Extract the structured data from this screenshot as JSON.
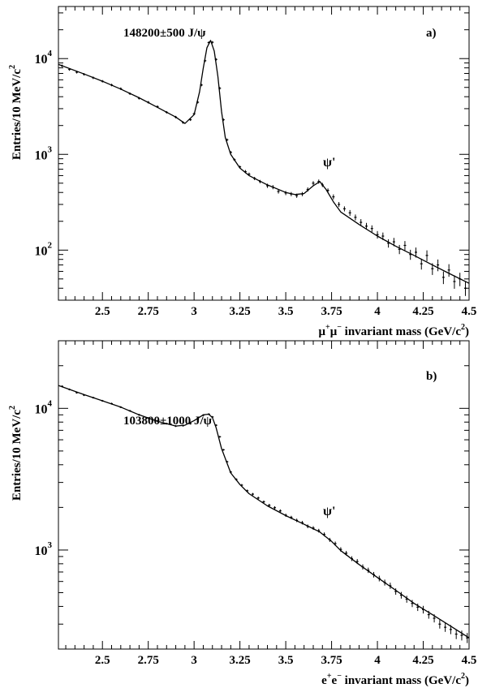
{
  "chart_data": [
    {
      "type": "scatter",
      "panel_label": "a)",
      "annotation": "148200±500 J/ψ",
      "peak_label": "ψ'",
      "xlabel": {
        "pre": "μ",
        "sup1": "+",
        "mid": "μ",
        "sup2": "−",
        "post": " invariant mass (GeV/c",
        "sup3": "2",
        "end": ")"
      },
      "ylabel": {
        "main": "Entries/10 MeV/c",
        "sup": "2"
      },
      "xlim": [
        2.26,
        4.5
      ],
      "ylim": [
        30,
        35000
      ],
      "yscale": "log",
      "grid": false,
      "xticks": [
        2.5,
        2.75,
        3.0,
        3.25,
        3.5,
        3.75,
        4.0,
        4.25,
        4.5
      ],
      "xtick_labels": [
        "2.5",
        "2.75",
        "3",
        "3.25",
        "3.5",
        "3.75",
        "4",
        "4.25",
        "4.5"
      ],
      "yticks": [
        {
          "base": "10",
          "exp": "2",
          "value": 100
        },
        {
          "base": "10",
          "exp": "3",
          "value": 1000
        },
        {
          "base": "10",
          "exp": "4",
          "value": 10000
        }
      ],
      "fit": {
        "x": [
          2.26,
          2.4,
          2.5,
          2.6,
          2.7,
          2.8,
          2.9,
          2.95,
          3.0,
          3.03,
          3.05,
          3.07,
          3.09,
          3.11,
          3.13,
          3.15,
          3.17,
          3.2,
          3.25,
          3.3,
          3.4,
          3.5,
          3.55,
          3.6,
          3.65,
          3.686,
          3.72,
          3.76,
          3.8,
          3.9,
          4.0,
          4.1,
          4.2,
          4.3,
          4.4,
          4.5
        ],
        "y": [
          8700,
          6900,
          5800,
          4800,
          3900,
          3100,
          2450,
          2100,
          2600,
          4500,
          8000,
          13000,
          15500,
          12000,
          6500,
          2800,
          1500,
          1000,
          720,
          600,
          480,
          400,
          380,
          390,
          470,
          520,
          430,
          320,
          250,
          185,
          140,
          110,
          88,
          70,
          56,
          45
        ]
      },
      "points": {
        "x": [
          2.28,
          2.32,
          2.36,
          2.4,
          2.45,
          2.5,
          2.55,
          2.6,
          2.65,
          2.7,
          2.75,
          2.8,
          2.85,
          2.9,
          2.94,
          2.98,
          3.0,
          3.02,
          3.04,
          3.06,
          3.08,
          3.1,
          3.12,
          3.14,
          3.16,
          3.18,
          3.2,
          3.22,
          3.25,
          3.28,
          3.3,
          3.33,
          3.36,
          3.4,
          3.43,
          3.46,
          3.5,
          3.53,
          3.56,
          3.59,
          3.62,
          3.65,
          3.68,
          3.7,
          3.73,
          3.76,
          3.79,
          3.82,
          3.85,
          3.88,
          3.91,
          3.94,
          3.97,
          4.0,
          4.03,
          4.06,
          4.09,
          4.12,
          4.15,
          4.18,
          4.21,
          4.24,
          4.27,
          4.3,
          4.33,
          4.36,
          4.39,
          4.42,
          4.45,
          4.48
        ],
        "y": [
          8400,
          7700,
          7200,
          6850,
          6300,
          5800,
          5300,
          4850,
          4300,
          3850,
          3500,
          3150,
          2750,
          2450,
          2150,
          2300,
          2650,
          3500,
          5300,
          9500,
          14700,
          14800,
          9800,
          4900,
          2300,
          1420,
          1050,
          880,
          740,
          660,
          620,
          560,
          520,
          470,
          455,
          410,
          395,
          385,
          370,
          385,
          430,
          500,
          520,
          480,
          420,
          360,
          300,
          270,
          245,
          220,
          195,
          178,
          168,
          145,
          140,
          118,
          122,
          102,
          112,
          90,
          95,
          72,
          88,
          64,
          70,
          52,
          62,
          47,
          50,
          40
        ],
        "err": [
          0.03,
          0.03,
          0.03,
          0.03,
          0.03,
          0.03,
          0.03,
          0.03,
          0.03,
          0.03,
          0.03,
          0.03,
          0.03,
          0.03,
          0.03,
          0.03,
          0.03,
          0.03,
          0.03,
          0.03,
          0.03,
          0.03,
          0.03,
          0.03,
          0.03,
          0.03,
          0.03,
          0.03,
          0.03,
          0.04,
          0.04,
          0.04,
          0.04,
          0.05,
          0.05,
          0.05,
          0.05,
          0.05,
          0.05,
          0.05,
          0.05,
          0.05,
          0.05,
          0.05,
          0.05,
          0.06,
          0.06,
          0.06,
          0.07,
          0.07,
          0.08,
          0.08,
          0.08,
          0.09,
          0.09,
          0.1,
          0.1,
          0.11,
          0.11,
          0.12,
          0.12,
          0.13,
          0.13,
          0.14,
          0.14,
          0.15,
          0.15,
          0.16,
          0.16,
          0.17
        ]
      }
    },
    {
      "type": "scatter",
      "panel_label": "b)",
      "annotation": "103800±1000 J/ψ",
      "peak_label": "ψ'",
      "xlabel": {
        "pre": "e",
        "sup1": "+",
        "mid": "e",
        "sup2": "−",
        "post": " invariant mass (GeV/c",
        "sup3": "2",
        "end": ")"
      },
      "ylabel": {
        "main": "Entries/10 MeV/c",
        "sup": "2"
      },
      "xlim": [
        2.26,
        4.5
      ],
      "ylim": [
        200,
        30000
      ],
      "yscale": "log",
      "grid": false,
      "xticks": [
        2.5,
        2.75,
        3.0,
        3.25,
        3.5,
        3.75,
        4.0,
        4.25,
        4.5
      ],
      "xtick_labels": [
        "2.5",
        "2.75",
        "3",
        "3.25",
        "3.5",
        "3.75",
        "4",
        "4.25",
        "4.5"
      ],
      "yticks": [
        {
          "base": "10",
          "exp": "3",
          "value": 1000
        },
        {
          "base": "10",
          "exp": "4",
          "value": 10000
        }
      ],
      "fit": {
        "x": [
          2.26,
          2.4,
          2.5,
          2.6,
          2.7,
          2.8,
          2.9,
          2.95,
          3.0,
          3.05,
          3.08,
          3.1,
          3.12,
          3.15,
          3.2,
          3.25,
          3.3,
          3.4,
          3.5,
          3.6,
          3.686,
          3.75,
          3.8,
          3.9,
          4.0,
          4.1,
          4.2,
          4.3,
          4.4,
          4.5
        ],
        "y": [
          14500,
          12500,
          11300,
          10200,
          9000,
          8100,
          7500,
          7600,
          8200,
          9000,
          9100,
          8600,
          7300,
          5200,
          3500,
          2900,
          2500,
          2050,
          1750,
          1520,
          1340,
          1150,
          990,
          790,
          640,
          520,
          420,
          350,
          290,
          240
        ]
      },
      "points": {
        "x": [
          2.28,
          2.32,
          2.36,
          2.4,
          2.45,
          2.5,
          2.55,
          2.6,
          2.65,
          2.7,
          2.75,
          2.8,
          2.85,
          2.9,
          2.94,
          2.98,
          3.02,
          3.05,
          3.08,
          3.1,
          3.12,
          3.14,
          3.16,
          3.18,
          3.2,
          3.23,
          3.26,
          3.29,
          3.32,
          3.35,
          3.38,
          3.41,
          3.44,
          3.47,
          3.5,
          3.53,
          3.56,
          3.59,
          3.62,
          3.65,
          3.68,
          3.71,
          3.74,
          3.77,
          3.8,
          3.83,
          3.86,
          3.89,
          3.92,
          3.95,
          3.98,
          4.01,
          4.04,
          4.07,
          4.1,
          4.13,
          4.16,
          4.19,
          4.22,
          4.25,
          4.28,
          4.31,
          4.34,
          4.37,
          4.4,
          4.43,
          4.46,
          4.49
        ],
        "y": [
          14300,
          13600,
          12900,
          12400,
          11900,
          11300,
          10800,
          10200,
          9600,
          9000,
          8550,
          8150,
          7800,
          7500,
          7550,
          7800,
          8400,
          8950,
          9100,
          8700,
          7600,
          6300,
          5100,
          4200,
          3550,
          3150,
          2870,
          2620,
          2480,
          2330,
          2190,
          2070,
          1990,
          1890,
          1760,
          1700,
          1620,
          1560,
          1470,
          1430,
          1370,
          1290,
          1180,
          1110,
          1010,
          950,
          870,
          830,
          760,
          720,
          670,
          630,
          590,
          560,
          510,
          480,
          450,
          420,
          395,
          380,
          350,
          330,
          300,
          285,
          275,
          255,
          250,
          240
        ],
        "err": [
          0.015,
          0.015,
          0.015,
          0.015,
          0.015,
          0.015,
          0.015,
          0.015,
          0.015,
          0.015,
          0.015,
          0.015,
          0.015,
          0.015,
          0.015,
          0.015,
          0.015,
          0.015,
          0.015,
          0.015,
          0.015,
          0.015,
          0.015,
          0.015,
          0.018,
          0.018,
          0.02,
          0.02,
          0.02,
          0.022,
          0.022,
          0.024,
          0.024,
          0.025,
          0.026,
          0.026,
          0.028,
          0.028,
          0.03,
          0.03,
          0.03,
          0.032,
          0.033,
          0.034,
          0.036,
          0.037,
          0.039,
          0.04,
          0.042,
          0.043,
          0.045,
          0.046,
          0.048,
          0.05,
          0.052,
          0.054,
          0.056,
          0.058,
          0.06,
          0.062,
          0.064,
          0.066,
          0.07,
          0.072,
          0.074,
          0.078,
          0.08,
          0.082
        ]
      }
    }
  ]
}
